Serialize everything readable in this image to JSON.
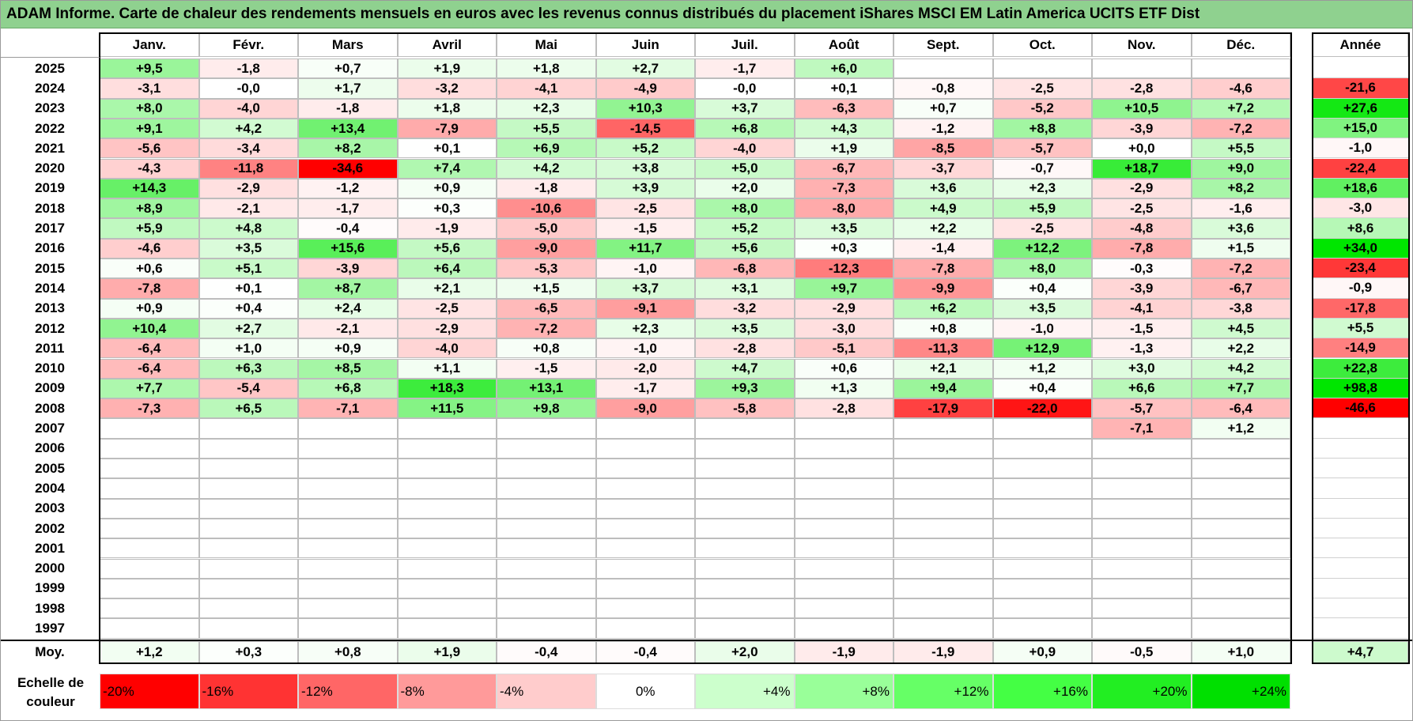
{
  "title": "ADAM Informe. Carte de chaleur des rendements mensuels en euros avec les revenus connus distribués du placement iShares MSCI EM Latin America UCITS ETF Dist",
  "chart_data": {
    "type": "heatmap",
    "title": "ADAM Informe. Carte de chaleur des rendements mensuels en euros avec les revenus connus distribués du placement iShares MSCI EM Latin America UCITS ETF Dist",
    "months": [
      "Janv.",
      "Févr.",
      "Mars",
      "Avril",
      "Mai",
      "Juin",
      "Juil.",
      "Août",
      "Sept.",
      "Oct.",
      "Nov.",
      "Déc."
    ],
    "year_header": "Année",
    "average_label": "Moy.",
    "rows": [
      {
        "year": "2025",
        "values": [
          "+9,5",
          "-1,8",
          "+0,7",
          "+1,9",
          "+1,8",
          "+2,7",
          "-1,7",
          "+6,0",
          "",
          "",
          "",
          ""
        ],
        "annual": ""
      },
      {
        "year": "2024",
        "values": [
          "-3,1",
          "-0,0",
          "+1,7",
          "-3,2",
          "-4,1",
          "-4,9",
          "-0,0",
          "+0,1",
          "-0,8",
          "-2,5",
          "-2,8",
          "-4,6"
        ],
        "annual": "-21,6"
      },
      {
        "year": "2023",
        "values": [
          "+8,0",
          "-4,0",
          "-1,8",
          "+1,8",
          "+2,3",
          "+10,3",
          "+3,7",
          "-6,3",
          "+0,7",
          "-5,2",
          "+10,5",
          "+7,2"
        ],
        "annual": "+27,6"
      },
      {
        "year": "2022",
        "values": [
          "+9,1",
          "+4,2",
          "+13,4",
          "-7,9",
          "+5,5",
          "-14,5",
          "+6,8",
          "+4,3",
          "-1,2",
          "+8,8",
          "-3,9",
          "-7,2"
        ],
        "annual": "+15,0"
      },
      {
        "year": "2021",
        "values": [
          "-5,6",
          "-3,4",
          "+8,2",
          "+0,1",
          "+6,9",
          "+5,2",
          "-4,0",
          "+1,9",
          "-8,5",
          "-5,7",
          "+0,0",
          "+5,5"
        ],
        "annual": "-1,0"
      },
      {
        "year": "2020",
        "values": [
          "-4,3",
          "-11,8",
          "-34,6",
          "+7,4",
          "+4,2",
          "+3,8",
          "+5,0",
          "-6,7",
          "-3,7",
          "-0,7",
          "+18,7",
          "+9,0"
        ],
        "annual": "-22,4"
      },
      {
        "year": "2019",
        "values": [
          "+14,3",
          "-2,9",
          "-1,2",
          "+0,9",
          "-1,8",
          "+3,9",
          "+2,0",
          "-7,3",
          "+3,6",
          "+2,3",
          "-2,9",
          "+8,2"
        ],
        "annual": "+18,6"
      },
      {
        "year": "2018",
        "values": [
          "+8,9",
          "-2,1",
          "-1,7",
          "+0,3",
          "-10,6",
          "-2,5",
          "+8,0",
          "-8,0",
          "+4,9",
          "+5,9",
          "-2,5",
          "-1,6"
        ],
        "annual": "-3,0"
      },
      {
        "year": "2017",
        "values": [
          "+5,9",
          "+4,8",
          "-0,4",
          "-1,9",
          "-5,0",
          "-1,5",
          "+5,2",
          "+3,5",
          "+2,2",
          "-2,5",
          "-4,8",
          "+3,6"
        ],
        "annual": "+8,6"
      },
      {
        "year": "2016",
        "values": [
          "-4,6",
          "+3,5",
          "+15,6",
          "+5,6",
          "-9,0",
          "+11,7",
          "+5,6",
          "+0,3",
          "-1,4",
          "+12,2",
          "-7,8",
          "+1,5"
        ],
        "annual": "+34,0"
      },
      {
        "year": "2015",
        "values": [
          "+0,6",
          "+5,1",
          "-3,9",
          "+6,4",
          "-5,3",
          "-1,0",
          "-6,8",
          "-12,3",
          "-7,8",
          "+8,0",
          "-0,3",
          "-7,2"
        ],
        "annual": "-23,4"
      },
      {
        "year": "2014",
        "values": [
          "-7,8",
          "+0,1",
          "+8,7",
          "+2,1",
          "+1,5",
          "+3,7",
          "+3,1",
          "+9,7",
          "-9,9",
          "+0,4",
          "-3,9",
          "-6,7"
        ],
        "annual": "-0,9"
      },
      {
        "year": "2013",
        "values": [
          "+0,9",
          "+0,4",
          "+2,4",
          "-2,5",
          "-6,5",
          "-9,1",
          "-3,2",
          "-2,9",
          "+6,2",
          "+3,5",
          "-4,1",
          "-3,8"
        ],
        "annual": "-17,8"
      },
      {
        "year": "2012",
        "values": [
          "+10,4",
          "+2,7",
          "-2,1",
          "-2,9",
          "-7,2",
          "+2,3",
          "+3,5",
          "-3,0",
          "+0,8",
          "-1,0",
          "-1,5",
          "+4,5"
        ],
        "annual": "+5,5"
      },
      {
        "year": "2011",
        "values": [
          "-6,4",
          "+1,0",
          "+0,9",
          "-4,0",
          "+0,8",
          "-1,0",
          "-2,8",
          "-5,1",
          "-11,3",
          "+12,9",
          "-1,3",
          "+2,2"
        ],
        "annual": "-14,9"
      },
      {
        "year": "2010",
        "values": [
          "-6,4",
          "+6,3",
          "+8,5",
          "+1,1",
          "-1,5",
          "-2,0",
          "+4,7",
          "+0,6",
          "+2,1",
          "+1,2",
          "+3,0",
          "+4,2"
        ],
        "annual": "+22,8"
      },
      {
        "year": "2009",
        "values": [
          "+7,7",
          "-5,4",
          "+6,8",
          "+18,3",
          "+13,1",
          "-1,7",
          "+9,3",
          "+1,3",
          "+9,4",
          "+0,4",
          "+6,6",
          "+7,7"
        ],
        "annual": "+98,8"
      },
      {
        "year": "2008",
        "values": [
          "-7,3",
          "+6,5",
          "-7,1",
          "+11,5",
          "+9,8",
          "-9,0",
          "-5,8",
          "-2,8",
          "-17,9",
          "-22,0",
          "-5,7",
          "-6,4"
        ],
        "annual": "-46,6"
      },
      {
        "year": "2007",
        "values": [
          "",
          "",
          "",
          "",
          "",
          "",
          "",
          "",
          "",
          "",
          "-7,1",
          "+1,2"
        ],
        "annual": ""
      },
      {
        "year": "2006",
        "values": [
          "",
          "",
          "",
          "",
          "",
          "",
          "",
          "",
          "",
          "",
          "",
          ""
        ],
        "annual": ""
      },
      {
        "year": "2005",
        "values": [
          "",
          "",
          "",
          "",
          "",
          "",
          "",
          "",
          "",
          "",
          "",
          ""
        ],
        "annual": ""
      },
      {
        "year": "2004",
        "values": [
          "",
          "",
          "",
          "",
          "",
          "",
          "",
          "",
          "",
          "",
          "",
          ""
        ],
        "annual": ""
      },
      {
        "year": "2003",
        "values": [
          "",
          "",
          "",
          "",
          "",
          "",
          "",
          "",
          "",
          "",
          "",
          ""
        ],
        "annual": ""
      },
      {
        "year": "2002",
        "values": [
          "",
          "",
          "",
          "",
          "",
          "",
          "",
          "",
          "",
          "",
          "",
          ""
        ],
        "annual": ""
      },
      {
        "year": "2001",
        "values": [
          "",
          "",
          "",
          "",
          "",
          "",
          "",
          "",
          "",
          "",
          "",
          ""
        ],
        "annual": ""
      },
      {
        "year": "2000",
        "values": [
          "",
          "",
          "",
          "",
          "",
          "",
          "",
          "",
          "",
          "",
          "",
          ""
        ],
        "annual": ""
      },
      {
        "year": "1999",
        "values": [
          "",
          "",
          "",
          "",
          "",
          "",
          "",
          "",
          "",
          "",
          "",
          ""
        ],
        "annual": ""
      },
      {
        "year": "1998",
        "values": [
          "",
          "",
          "",
          "",
          "",
          "",
          "",
          "",
          "",
          "",
          "",
          ""
        ],
        "annual": ""
      },
      {
        "year": "1997",
        "values": [
          "",
          "",
          "",
          "",
          "",
          "",
          "",
          "",
          "",
          "",
          "",
          ""
        ],
        "annual": ""
      }
    ],
    "averages": [
      "+1,2",
      "+0,3",
      "+0,8",
      "+1,9",
      "-0,4",
      "-0,4",
      "+2,0",
      "-1,9",
      "-1,9",
      "+0,9",
      "-0,5",
      "+1,0"
    ],
    "average_annual": "+4,7",
    "color_scale": {
      "label": "Echelle de couleur",
      "stops": [
        {
          "label": "-20%",
          "value": -20,
          "color": "#ff0000"
        },
        {
          "label": "-16%",
          "value": -16,
          "color": "#ff3333"
        },
        {
          "label": "-12%",
          "value": -12,
          "color": "#ff6666"
        },
        {
          "label": "-8%",
          "value": -8,
          "color": "#ff9a9a"
        },
        {
          "label": "-4%",
          "value": -4,
          "color": "#ffcccc"
        },
        {
          "label": "0%",
          "value": 0,
          "color": "#ffffff"
        },
        {
          "label": "+4%",
          "value": 4,
          "color": "#ccffcc"
        },
        {
          "label": "+8%",
          "value": 8,
          "color": "#99ff99"
        },
        {
          "label": "+12%",
          "value": 12,
          "color": "#66ff66"
        },
        {
          "label": "+16%",
          "value": 16,
          "color": "#44ff44"
        },
        {
          "label": "+20%",
          "value": 20,
          "color": "#22ee22"
        },
        {
          "label": "+24%",
          "value": 24,
          "color": "#00e000"
        }
      ]
    }
  }
}
